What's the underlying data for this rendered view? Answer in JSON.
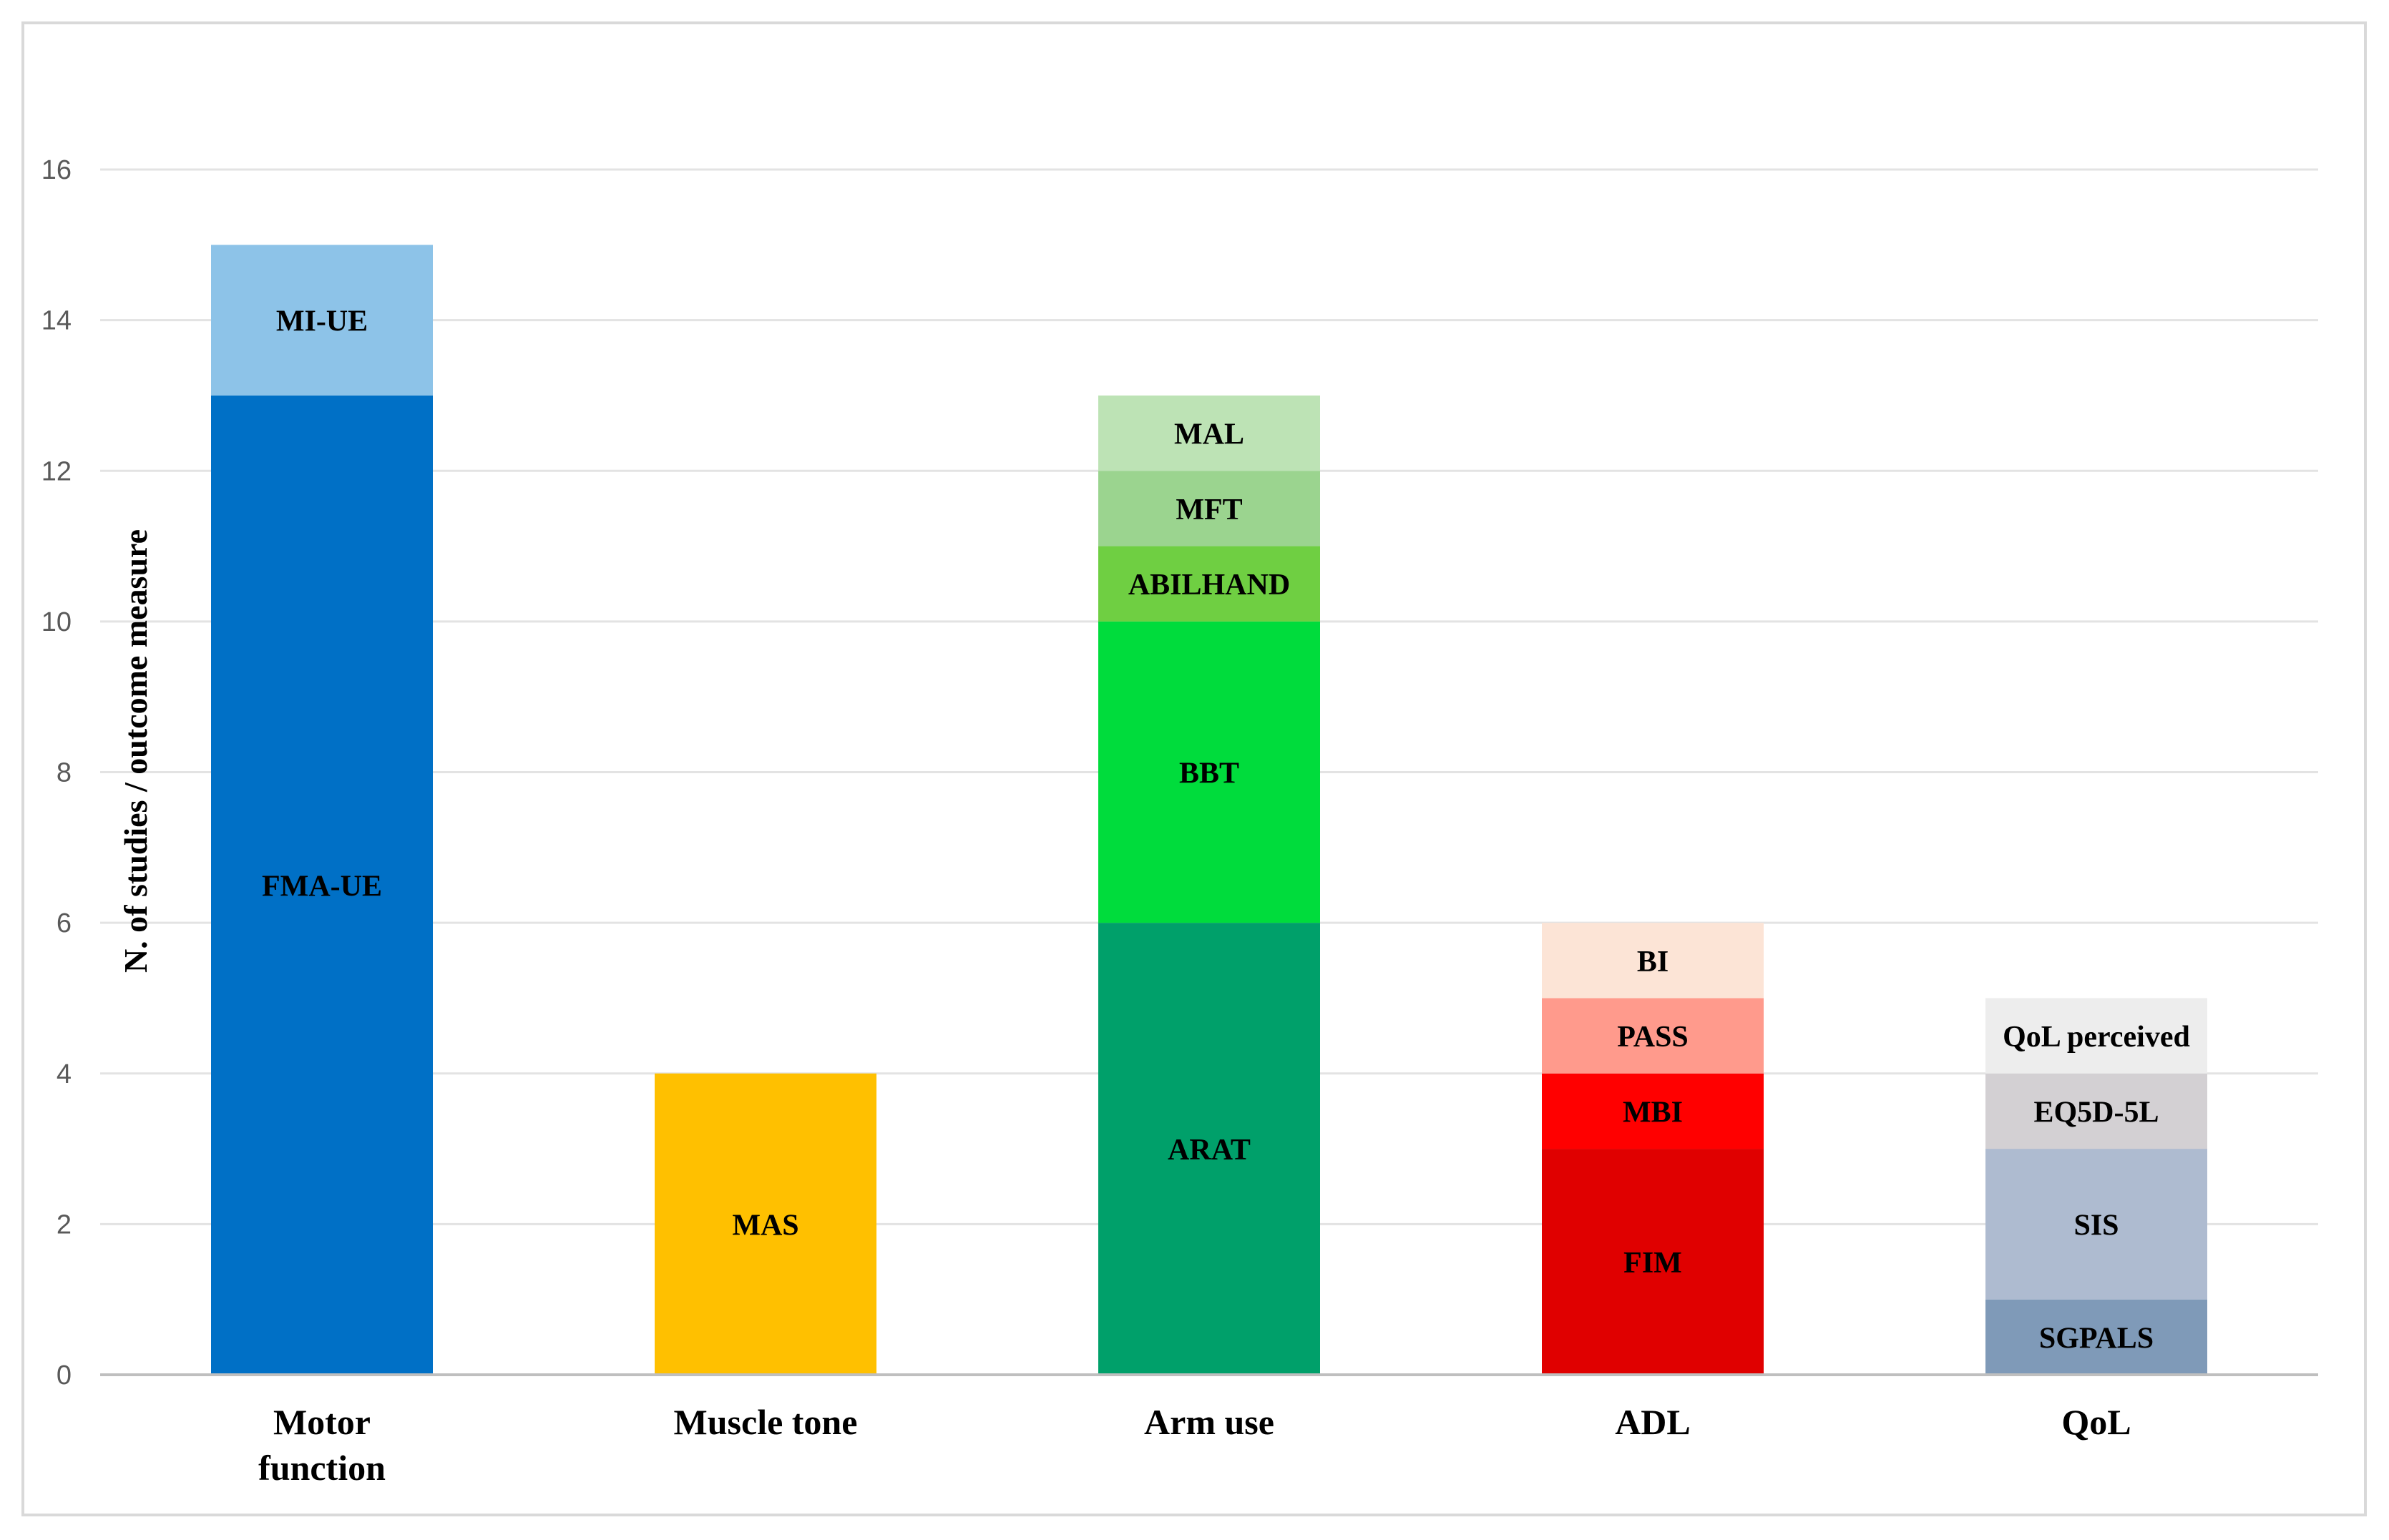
{
  "chart_data": {
    "type": "bar",
    "stacked": true,
    "title": "",
    "xlabel": "",
    "ylabel": "N. of studies / outcome measure",
    "ylim": [
      0,
      16
    ],
    "yticks": [
      0,
      2,
      4,
      6,
      8,
      10,
      12,
      14,
      16
    ],
    "grid": true,
    "legend": "none",
    "categories": [
      {
        "lines": [
          "Motor",
          "function"
        ],
        "segments": [
          {
            "label": "FMA-UE",
            "value": 13,
            "color": "#0070c6"
          },
          {
            "label": "MI-UE",
            "value": 2,
            "color": "#8dc3e8"
          }
        ]
      },
      {
        "lines": [
          "Muscle tone"
        ],
        "segments": [
          {
            "label": "MAS",
            "value": 4,
            "color": "#ffc000"
          }
        ]
      },
      {
        "lines": [
          "Arm use"
        ],
        "segments": [
          {
            "label": "ARAT",
            "value": 6,
            "color": "#00a06a"
          },
          {
            "label": "BBT",
            "value": 4,
            "color": "#00dc3c"
          },
          {
            "label": "ABILHAND",
            "value": 1,
            "color": "#6fcf42"
          },
          {
            "label": "MFT",
            "value": 1,
            "color": "#9bd48f"
          },
          {
            "label": "MAL",
            "value": 1,
            "color": "#bde3b5"
          }
        ]
      },
      {
        "lines": [
          "ADL"
        ],
        "segments": [
          {
            "label": "FIM",
            "value": 3,
            "color": "#e00000"
          },
          {
            "label": "MBI",
            "value": 1,
            "color": "#ff0000"
          },
          {
            "label": "PASS",
            "value": 1,
            "color": "#ff9a8c"
          },
          {
            "label": "BI",
            "value": 1,
            "color": "#fce4d6"
          }
        ]
      },
      {
        "lines": [
          "QoL"
        ],
        "segments": [
          {
            "label": "SGPALS",
            "value": 1,
            "color": "#7f9ab8"
          },
          {
            "label": "SIS",
            "value": 2,
            "color": "#aebbd0"
          },
          {
            "label": "EQ5D-5L",
            "value": 1,
            "color": "#d3d0d3"
          },
          {
            "label": "QoL perceived",
            "value": 1,
            "color": "#ededed"
          }
        ]
      }
    ]
  }
}
